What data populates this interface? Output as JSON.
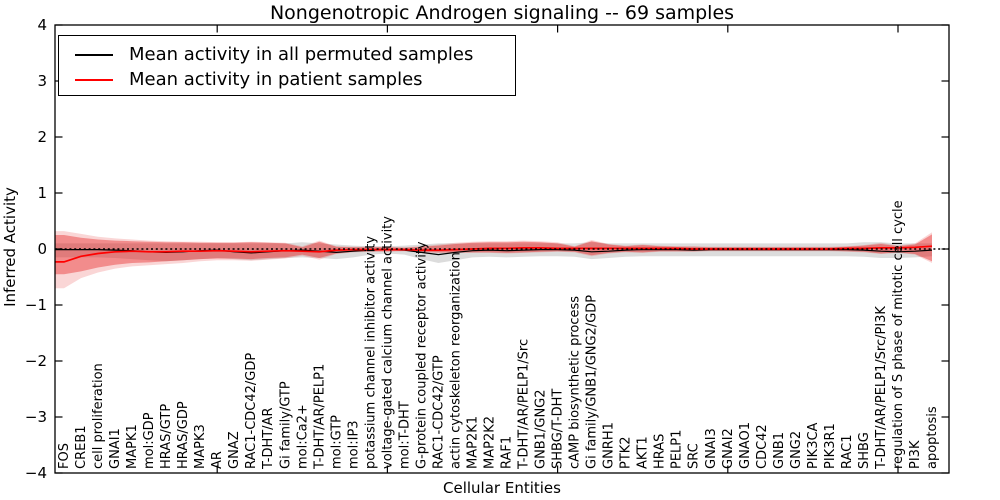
{
  "title": "Nongenotropic Androgen signaling -- 69 samples",
  "axes": {
    "xlabel": "Cellular Entities",
    "ylabel": "Inferred Activity"
  },
  "legend": {
    "items": [
      {
        "label": "Mean activity in all permuted samples",
        "color": "#000000"
      },
      {
        "label": "Mean activity in patient samples",
        "color": "#ff0000"
      }
    ]
  },
  "colors": {
    "frame": "#000000",
    "zero_line": "#000000",
    "permuted_line": "#000000",
    "patient_line": "#ff0000",
    "permuted_band": "rgba(128,128,128,0.28)",
    "patient_band_outer": "rgba(230,30,30,0.18)",
    "patient_band_inner": "rgba(230,30,30,0.40)"
  },
  "chart_data": {
    "type": "line",
    "title": "Nongenotropic Androgen signaling -- 69 samples",
    "xlabel": "Cellular Entities",
    "ylabel": "Inferred Activity",
    "ylim": [
      -4,
      4
    ],
    "yticks": [
      -4,
      -3,
      -2,
      -1,
      0,
      1,
      2,
      3,
      4
    ],
    "xtick_positions": [
      10,
      20,
      30,
      40,
      50
    ],
    "grid": false,
    "legend_position": "upper left",
    "zero_reference_line": 0,
    "categories": [
      "FOS",
      "CREB1",
      "cell proliferation",
      "GNAI1",
      "MAPK1",
      "mol:GDP",
      "HRAS/GTP",
      "HRAS/GDP",
      "MAPK3",
      "AR",
      "GNAZ",
      "RAC1-CDC42/GDP",
      "T-DHT/AR",
      "Gi family/GTP",
      "mol:Ca2+",
      "T-DHT/AR/PELP1",
      "mol:GTP",
      "mol:IP3",
      "potassium channel inhibitor activity",
      "voltage-gated calcium channel activity",
      "mol:T-DHT",
      "G-protein coupled receptor activity",
      "RAC1-CDC42/GTP",
      "actin cytoskeleton reorganization",
      "MAP2K1",
      "MAP2K2",
      "RAF1",
      "T-DHT/AR/PELP1/Src",
      "GNB1/GNG2",
      "SHBG/T-DHT",
      "cAMP biosynthetic process",
      "Gi family/GNB1/GNG2/GDP",
      "GNRH1",
      "PTK2",
      "AKT1",
      "HRAS",
      "PELP1",
      "SRC",
      "GNAI3",
      "GNAI2",
      "GNAO1",
      "CDC42",
      "GNB1",
      "GNG2",
      "PIK3CA",
      "PIK3R1",
      "RAC1",
      "SHBG",
      "T-DHT/AR/PELP1/Src/PI3K",
      "regulation of S phase of mitotic cell cycle",
      "PI3K",
      "apoptosis"
    ],
    "series": [
      {
        "name": "Mean activity in all permuted samples",
        "color": "#000000",
        "values": [
          -0.01,
          -0.01,
          -0.01,
          -0.02,
          -0.03,
          -0.05,
          -0.06,
          -0.05,
          -0.03,
          -0.02,
          -0.05,
          -0.07,
          -0.05,
          -0.03,
          -0.02,
          -0.04,
          -0.06,
          -0.04,
          -0.02,
          -0.01,
          -0.02,
          -0.06,
          -0.1,
          -0.06,
          -0.03,
          -0.02,
          -0.03,
          -0.02,
          -0.01,
          -0.01,
          -0.02,
          -0.05,
          -0.04,
          -0.02,
          -0.01,
          -0.01,
          -0.01,
          -0.02,
          -0.01,
          -0.01,
          -0.01,
          -0.01,
          -0.01,
          -0.01,
          -0.01,
          -0.01,
          -0.01,
          -0.02,
          -0.04,
          -0.05,
          -0.04,
          -0.02
        ]
      },
      {
        "name": "Mean activity in patient samples",
        "color": "#ff0000",
        "values": [
          -0.23,
          -0.13,
          -0.08,
          -0.05,
          -0.04,
          -0.05,
          -0.05,
          -0.04,
          -0.04,
          -0.03,
          -0.04,
          -0.05,
          -0.04,
          -0.03,
          -0.04,
          -0.05,
          -0.02,
          -0.01,
          -0.01,
          -0.01,
          -0.01,
          -0.02,
          -0.02,
          -0.01,
          0.0,
          0.01,
          0.01,
          0.02,
          0.02,
          0.01,
          0.01,
          0.01,
          0.01,
          0.01,
          0.01,
          0.01,
          0.01,
          0.0,
          0.0,
          0.0,
          0.0,
          0.0,
          0.0,
          0.0,
          0.0,
          0.0,
          0.01,
          0.01,
          0.02,
          0.02,
          0.03,
          0.05
        ]
      }
    ],
    "bands": [
      {
        "name": "permuted-samples-range",
        "color": "rgba(128,128,128,0.28)",
        "top": [
          0.1,
          0.1,
          0.1,
          0.1,
          0.1,
          0.1,
          0.1,
          0.1,
          0.1,
          0.1,
          0.1,
          0.1,
          0.1,
          0.1,
          0.12,
          0.1,
          0.08,
          0.06,
          0.05,
          0.05,
          0.06,
          0.08,
          0.1,
          0.1,
          0.1,
          0.1,
          0.1,
          0.1,
          0.1,
          0.1,
          0.1,
          0.12,
          0.1,
          0.1,
          0.1,
          0.1,
          0.1,
          0.1,
          0.1,
          0.1,
          0.1,
          0.1,
          0.1,
          0.1,
          0.1,
          0.1,
          0.1,
          0.12,
          0.12,
          0.1,
          0.1,
          0.1
        ],
        "bottom": [
          -0.15,
          -0.15,
          -0.15,
          -0.16,
          -0.18,
          -0.2,
          -0.22,
          -0.2,
          -0.18,
          -0.16,
          -0.18,
          -0.2,
          -0.18,
          -0.16,
          -0.15,
          -0.16,
          -0.18,
          -0.15,
          -0.1,
          -0.08,
          -0.1,
          -0.18,
          -0.25,
          -0.2,
          -0.15,
          -0.14,
          -0.15,
          -0.14,
          -0.13,
          -0.13,
          -0.14,
          -0.18,
          -0.16,
          -0.14,
          -0.13,
          -0.13,
          -0.13,
          -0.13,
          -0.13,
          -0.13,
          -0.13,
          -0.13,
          -0.13,
          -0.13,
          -0.13,
          -0.13,
          -0.13,
          -0.14,
          -0.16,
          -0.16,
          -0.15,
          -0.13
        ]
      },
      {
        "name": "patient-samples-range-outer",
        "color": "rgba(230,30,30,0.18)",
        "top": [
          0.32,
          0.27,
          0.22,
          0.19,
          0.17,
          0.15,
          0.14,
          0.13,
          0.13,
          0.12,
          0.12,
          0.13,
          0.12,
          0.11,
          0.05,
          0.15,
          0.05,
          0.04,
          0.04,
          0.04,
          0.03,
          0.05,
          0.08,
          0.11,
          0.13,
          0.14,
          0.14,
          0.15,
          0.14,
          0.12,
          0.05,
          0.16,
          0.09,
          0.06,
          0.08,
          0.06,
          0.05,
          0.05,
          0.04,
          0.04,
          0.04,
          0.04,
          0.04,
          0.04,
          0.04,
          0.04,
          0.05,
          0.07,
          0.11,
          0.06,
          0.1,
          0.3
        ],
        "bottom": [
          -0.7,
          -0.52,
          -0.42,
          -0.35,
          -0.31,
          -0.29,
          -0.27,
          -0.25,
          -0.22,
          -0.2,
          -0.2,
          -0.21,
          -0.19,
          -0.17,
          -0.12,
          -0.19,
          -0.09,
          -0.06,
          -0.05,
          -0.05,
          -0.04,
          -0.06,
          -0.07,
          -0.07,
          -0.07,
          -0.07,
          -0.08,
          -0.07,
          -0.06,
          -0.05,
          -0.06,
          -0.13,
          -0.08,
          -0.06,
          -0.07,
          -0.05,
          -0.05,
          -0.05,
          -0.04,
          -0.04,
          -0.04,
          -0.04,
          -0.04,
          -0.04,
          -0.04,
          -0.04,
          -0.05,
          -0.06,
          -0.09,
          -0.07,
          -0.1,
          -0.25
        ]
      },
      {
        "name": "patient-samples-range-inner",
        "color": "rgba(230,30,30,0.40)",
        "top": [
          0.25,
          0.2,
          0.17,
          0.15,
          0.14,
          0.13,
          0.12,
          0.12,
          0.11,
          0.11,
          0.11,
          0.12,
          0.11,
          0.1,
          0.03,
          0.13,
          0.04,
          0.03,
          0.03,
          0.03,
          0.02,
          0.04,
          0.06,
          0.09,
          0.11,
          0.12,
          0.12,
          0.13,
          0.12,
          0.1,
          0.04,
          0.14,
          0.08,
          0.05,
          0.07,
          0.05,
          0.04,
          0.04,
          0.03,
          0.03,
          0.03,
          0.03,
          0.03,
          0.03,
          0.03,
          0.03,
          0.04,
          0.06,
          0.09,
          0.05,
          0.08,
          0.26
        ],
        "bottom": [
          -0.45,
          -0.4,
          -0.33,
          -0.28,
          -0.25,
          -0.24,
          -0.22,
          -0.2,
          -0.18,
          -0.17,
          -0.17,
          -0.18,
          -0.16,
          -0.15,
          -0.1,
          -0.16,
          -0.08,
          -0.05,
          -0.04,
          -0.04,
          -0.03,
          -0.05,
          -0.06,
          -0.06,
          -0.06,
          -0.06,
          -0.07,
          -0.06,
          -0.05,
          -0.04,
          -0.05,
          -0.11,
          -0.07,
          -0.05,
          -0.06,
          -0.04,
          -0.04,
          -0.04,
          -0.03,
          -0.03,
          -0.03,
          -0.03,
          -0.03,
          -0.03,
          -0.03,
          -0.03,
          -0.04,
          -0.05,
          -0.08,
          -0.06,
          -0.09,
          -0.22
        ]
      }
    ]
  }
}
